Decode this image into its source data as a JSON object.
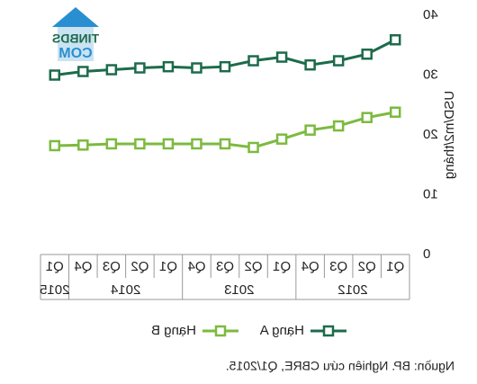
{
  "chart_data": {
    "type": "line",
    "y_label": "USD/m2/tháng",
    "categories": [
      "Q1",
      "Q2",
      "Q3",
      "Q4",
      "Q1",
      "Q2",
      "Q3",
      "Q4",
      "Q1",
      "Q2",
      "Q3",
      "Q4",
      "Q1"
    ],
    "years": [
      "2012",
      null,
      null,
      null,
      "2013",
      null,
      null,
      null,
      "2014",
      null,
      null,
      null,
      "2015"
    ],
    "series": [
      {
        "name": "Hạng A",
        "color": "#1d6b4b",
        "values": [
          35.9,
          33.5,
          32.4,
          31.7,
          33.0,
          32.4,
          31.4,
          31.2,
          31.4,
          31.2,
          30.9,
          30.6,
          30.0
        ]
      },
      {
        "name": "Hạng B",
        "color": "#7cba3f",
        "values": [
          23.8,
          22.9,
          21.5,
          20.8,
          19.3,
          17.9,
          18.5,
          18.5,
          18.5,
          18.5,
          18.5,
          18.3,
          18.2
        ]
      }
    ],
    "ylim": [
      0,
      40
    ],
    "yticks": [
      0,
      10,
      20,
      30,
      40
    ],
    "source": "Nguồn: BP. Nghiên cứu CBRE, Q1/2015.",
    "logo": [
      "TINBDS",
      "COM"
    ]
  }
}
